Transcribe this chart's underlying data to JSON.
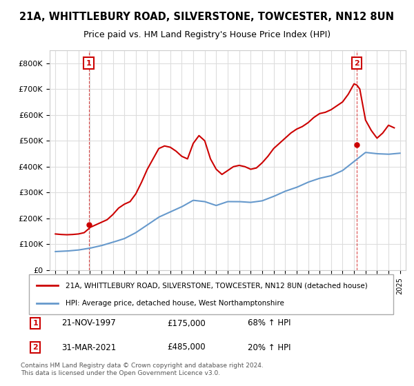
{
  "title_line1": "21A, WHITTLEBURY ROAD, SILVERSTONE, TOWCESTER, NN12 8UN",
  "title_line2": "Price paid vs. HM Land Registry's House Price Index (HPI)",
  "ylabel": "",
  "background_color": "#ffffff",
  "plot_bg_color": "#ffffff",
  "grid_color": "#dddddd",
  "red_color": "#cc0000",
  "blue_color": "#6699cc",
  "sale1_date": "21-NOV-1997",
  "sale1_price": 175000,
  "sale1_hpi": "68% ↑ HPI",
  "sale2_date": "31-MAR-2021",
  "sale2_price": 485000,
  "sale2_hpi": "20% ↑ HPI",
  "legend_red": "21A, WHITTLEBURY ROAD, SILVERSTONE, TOWCESTER, NN12 8UN (detached house)",
  "legend_blue": "HPI: Average price, detached house, West Northamptonshire",
  "footer": "Contains HM Land Registry data © Crown copyright and database right 2024.\nThis data is licensed under the Open Government Licence v3.0.",
  "years": [
    1995,
    1996,
    1997,
    1998,
    1999,
    2000,
    2001,
    2002,
    2003,
    2004,
    2005,
    2006,
    2007,
    2008,
    2009,
    2010,
    2011,
    2012,
    2013,
    2014,
    2015,
    2016,
    2017,
    2018,
    2019,
    2020,
    2021,
    2022,
    2023,
    2024,
    2025
  ],
  "hpi_values": [
    72000,
    74000,
    78000,
    85000,
    95000,
    108000,
    122000,
    145000,
    175000,
    205000,
    225000,
    245000,
    270000,
    265000,
    250000,
    265000,
    265000,
    262000,
    268000,
    285000,
    305000,
    320000,
    340000,
    355000,
    365000,
    385000,
    420000,
    455000,
    450000,
    448000,
    452000
  ],
  "red_x": [
    1995.0,
    1995.5,
    1996.0,
    1996.5,
    1997.0,
    1997.5,
    1997.9,
    1998.0,
    1998.5,
    1999.0,
    1999.5,
    2000.0,
    2000.5,
    2001.0,
    2001.5,
    2002.0,
    2002.5,
    2003.0,
    2003.5,
    2004.0,
    2004.5,
    2005.0,
    2005.5,
    2006.0,
    2006.5,
    2007.0,
    2007.5,
    2008.0,
    2008.5,
    2009.0,
    2009.5,
    2010.0,
    2010.5,
    2011.0,
    2011.5,
    2012.0,
    2012.5,
    2013.0,
    2013.5,
    2014.0,
    2014.5,
    2015.0,
    2015.5,
    2016.0,
    2016.5,
    2017.0,
    2017.5,
    2018.0,
    2018.5,
    2019.0,
    2019.5,
    2020.0,
    2020.5,
    2021.0,
    2021.25,
    2021.5,
    2022.0,
    2022.5,
    2023.0,
    2023.5,
    2024.0,
    2024.5
  ],
  "red_y": [
    140000,
    138000,
    137000,
    138000,
    140000,
    145000,
    160000,
    165000,
    175000,
    185000,
    195000,
    215000,
    240000,
    255000,
    265000,
    295000,
    340000,
    390000,
    430000,
    470000,
    480000,
    475000,
    460000,
    440000,
    430000,
    490000,
    520000,
    500000,
    430000,
    390000,
    370000,
    385000,
    400000,
    405000,
    400000,
    390000,
    395000,
    415000,
    440000,
    470000,
    490000,
    510000,
    530000,
    545000,
    555000,
    570000,
    590000,
    605000,
    610000,
    620000,
    635000,
    650000,
    680000,
    720000,
    715000,
    700000,
    580000,
    540000,
    510000,
    530000,
    560000,
    550000
  ],
  "ylim": [
    0,
    850000
  ],
  "xlim_start": 1994.5,
  "xlim_end": 2025.5
}
